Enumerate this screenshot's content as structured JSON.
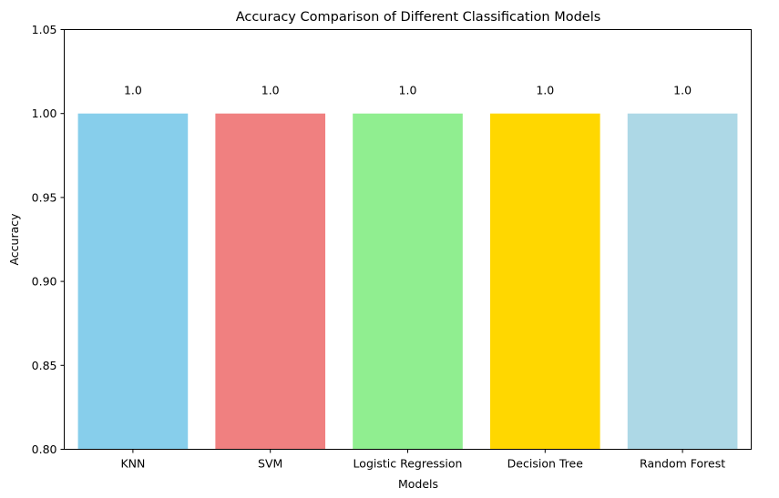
{
  "chart_data": {
    "type": "bar",
    "title": "Accuracy Comparison of Different Classification Models",
    "xlabel": "Models",
    "ylabel": "Accuracy",
    "categories": [
      "KNN",
      "SVM",
      "Logistic Regression",
      "Decision Tree",
      "Random Forest"
    ],
    "values": [
      1.0,
      1.0,
      1.0,
      1.0,
      1.0
    ],
    "value_labels": [
      "1.0",
      "1.0",
      "1.0",
      "1.0",
      "1.0"
    ],
    "colors": [
      "#87ceeb",
      "#f08080",
      "#90ee90",
      "#ffd700",
      "#add8e6"
    ],
    "ylim": [
      0.8,
      1.05
    ],
    "yticks": [
      0.8,
      0.85,
      0.9,
      0.95,
      1.0,
      1.05
    ],
    "ytick_labels": [
      "0.80",
      "0.85",
      "0.90",
      "0.95",
      "1.00",
      "1.05"
    ],
    "grid": false,
    "legend": "none"
  }
}
